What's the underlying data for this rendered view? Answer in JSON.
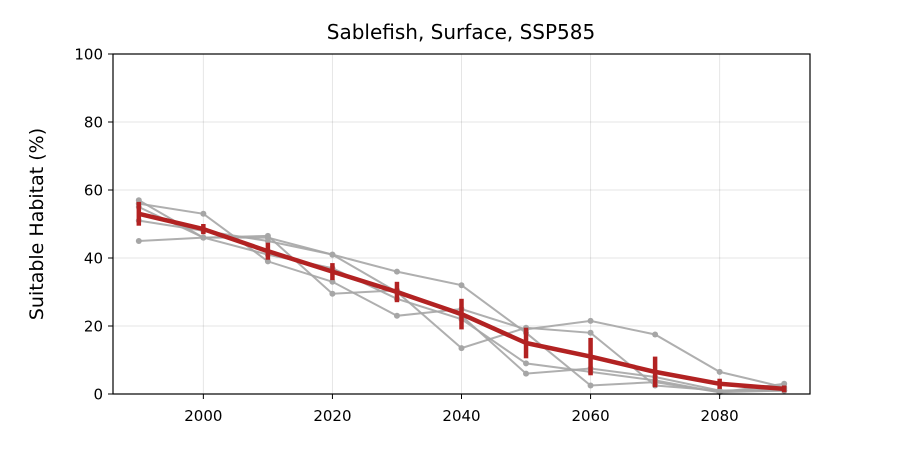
{
  "chart_data": {
    "type": "line",
    "title": "Sablefish, Surface, SSP585",
    "xlabel": "",
    "ylabel": "Suitable Habitat (%)",
    "xlim": [
      1986,
      2094
    ],
    "ylim": [
      0,
      100
    ],
    "x_ticks": [
      2000,
      2020,
      2040,
      2060,
      2080
    ],
    "y_ticks": [
      0,
      20,
      40,
      60,
      80,
      100
    ],
    "grid": true,
    "x": [
      1990,
      2000,
      2010,
      2020,
      2030,
      2040,
      2050,
      2060,
      2070,
      2080,
      2090
    ],
    "colors": {
      "members": "#a6a6a6",
      "mean": "#b22222"
    },
    "series": [
      {
        "values": [
          57,
          46,
          46,
          41,
          36,
          32,
          18,
          2.5,
          3.5,
          0.5,
          3
        ]
      },
      {
        "values": [
          56,
          53,
          39,
          33,
          23,
          25,
          19,
          21.5,
          17.5,
          6.5,
          2
        ]
      },
      {
        "values": [
          45,
          46,
          46.5,
          29.5,
          30.5,
          23,
          6,
          7.5,
          5,
          1,
          1
        ]
      },
      {
        "values": [
          51,
          48,
          45,
          41,
          30,
          13.5,
          19.5,
          18,
          2.5,
          1,
          1.5
        ]
      },
      {
        "values": [
          55,
          46,
          41,
          37,
          28,
          22,
          9,
          6.5,
          4,
          0.5,
          1
        ]
      }
    ],
    "mean": {
      "values": [
        53,
        48.5,
        42,
        36,
        30,
        23.5,
        15,
        11,
        6.5,
        3,
        1.5
      ],
      "error": [
        3.5,
        1.5,
        2.5,
        2.5,
        3,
        4.5,
        4.5,
        5.5,
        4.5,
        1.5,
        1
      ]
    }
  }
}
